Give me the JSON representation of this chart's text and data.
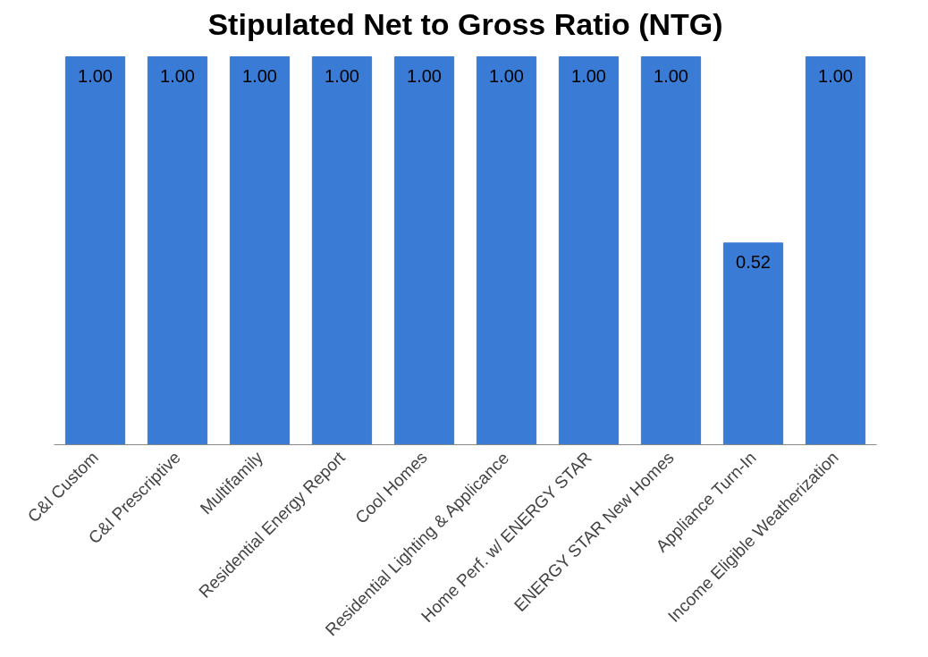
{
  "chart_data": {
    "type": "bar",
    "title": "Stipulated Net to Gross Ratio (NTG)",
    "categories": [
      "C&I Custom",
      "C&I Prescriptive",
      "Multifamily",
      "Residential Energy Report",
      "Cool Homes",
      "Residential Lighting & Applicance",
      "Home Perf. w/ ENERGY STAR",
      "ENERGY STAR New Homes",
      "Appliance Turn-In",
      "Income Eligible Weatherization"
    ],
    "values": [
      1.0,
      1.0,
      1.0,
      1.0,
      1.0,
      1.0,
      1.0,
      1.0,
      0.52,
      1.0
    ],
    "value_labels": [
      "1.00",
      "1.00",
      "1.00",
      "1.00",
      "1.00",
      "1.00",
      "1.00",
      "1.00",
      "0.52",
      "1.00"
    ],
    "color": "#3a7bd5"
  }
}
